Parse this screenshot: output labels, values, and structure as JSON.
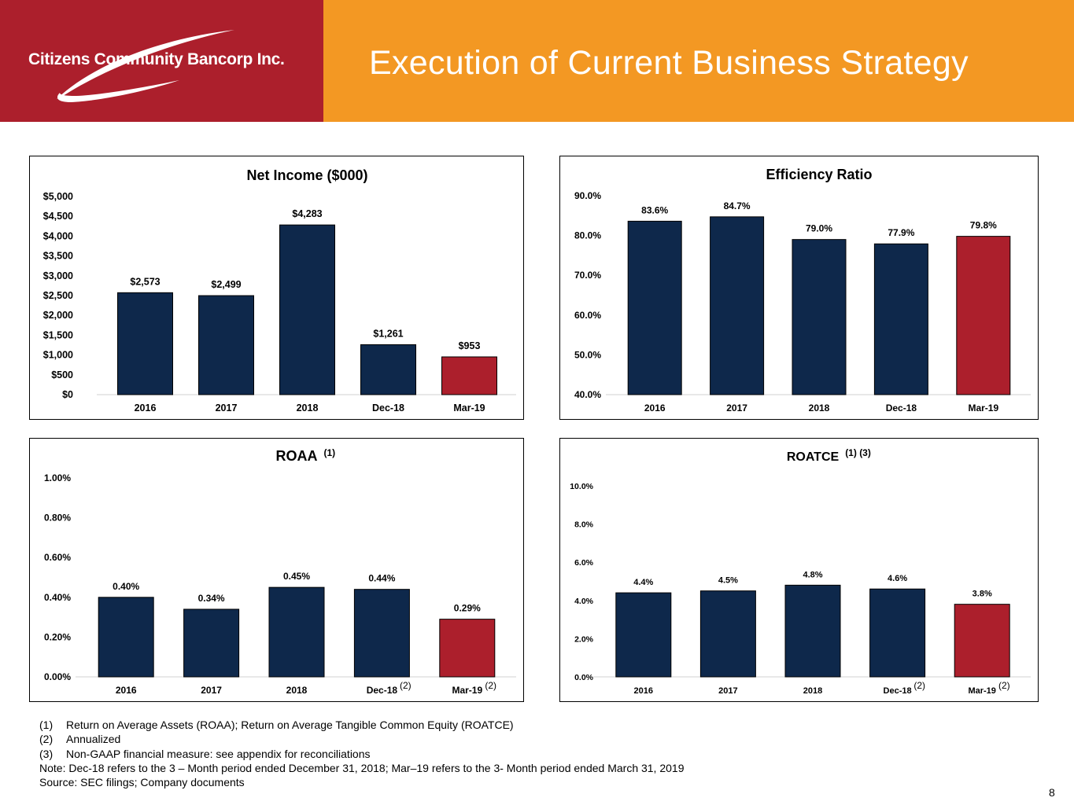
{
  "header": {
    "company_name": "Citizens Community Bancorp Inc.",
    "title": "Execution of Current Business Strategy"
  },
  "colors": {
    "header_red": "#ac1f2c",
    "header_orange": "#f39823",
    "bar_navy": "#0e284b",
    "bar_red": "#ac1f2c"
  },
  "chart_data": [
    {
      "id": "net-income",
      "type": "bar",
      "title": "Net Income ($000)",
      "title_superscript": "",
      "categories": [
        "2016",
        "2017",
        "2018",
        "Dec-18",
        "Mar-19"
      ],
      "category_notes": [
        "",
        "",
        "",
        "",
        ""
      ],
      "values": [
        2573,
        2499,
        4283,
        1261,
        953
      ],
      "value_labels": [
        "$2,573",
        "$2,499",
        "$4,283",
        "$1,261",
        "$953"
      ],
      "highlight_index": 4,
      "ylim": [
        0,
        5000
      ],
      "yticks": [
        0,
        500,
        1000,
        1500,
        2000,
        2500,
        3000,
        3500,
        4000,
        4500,
        5000
      ],
      "ytick_labels": [
        "$0",
        "$500",
        "$1,000",
        "$1,500",
        "$2,000",
        "$2,500",
        "$3,000",
        "$3,500",
        "$4,000",
        "$4,500",
        "$5,000"
      ]
    },
    {
      "id": "efficiency-ratio",
      "type": "bar",
      "title": "Efficiency Ratio",
      "title_superscript": "",
      "categories": [
        "2016",
        "2017",
        "2018",
        "Dec-18",
        "Mar-19"
      ],
      "category_notes": [
        "",
        "",
        "",
        "",
        ""
      ],
      "values": [
        83.6,
        84.7,
        79.0,
        77.9,
        79.8
      ],
      "value_labels": [
        "83.6%",
        "84.7%",
        "79.0%",
        "77.9%",
        "79.8%"
      ],
      "highlight_index": 4,
      "ylim": [
        40,
        90
      ],
      "yticks": [
        40,
        50,
        60,
        70,
        80,
        90
      ],
      "ytick_labels": [
        "40.0%",
        "50.0%",
        "60.0%",
        "70.0%",
        "80.0%",
        "90.0%"
      ]
    },
    {
      "id": "roaa",
      "type": "bar",
      "title": "ROAA",
      "title_superscript": "(1)",
      "categories": [
        "2016",
        "2017",
        "2018",
        "Dec-18",
        "Mar-19"
      ],
      "category_notes": [
        "",
        "",
        "",
        "(2)",
        "(2)"
      ],
      "values": [
        0.4,
        0.34,
        0.45,
        0.44,
        0.29
      ],
      "value_labels": [
        "0.40%",
        "0.34%",
        "0.45%",
        "0.44%",
        "0.29%"
      ],
      "highlight_index": 4,
      "ylim": [
        0,
        1.0
      ],
      "yticks": [
        0,
        0.2,
        0.4,
        0.6,
        0.8,
        1.0
      ],
      "ytick_labels": [
        "0.00%",
        "0.20%",
        "0.40%",
        "0.60%",
        "0.80%",
        "1.00%"
      ]
    },
    {
      "id": "roatce",
      "type": "bar",
      "title": "ROATCE",
      "title_superscript": "(1) (3)",
      "categories": [
        "2016",
        "2017",
        "2018",
        "Dec-18",
        "Mar-19"
      ],
      "category_notes": [
        "",
        "",
        "",
        "(2)",
        "(2)"
      ],
      "values": [
        4.4,
        4.5,
        4.8,
        4.6,
        3.8
      ],
      "value_labels": [
        "4.4%",
        "4.5%",
        "4.8%",
        "4.6%",
        "3.8%"
      ],
      "highlight_index": 4,
      "ylim": [
        0,
        10
      ],
      "yticks": [
        0,
        2,
        4,
        6,
        8,
        10
      ],
      "ytick_labels": [
        "0.0%",
        "2.0%",
        "4.0%",
        "6.0%",
        "8.0%",
        "10.0%"
      ]
    }
  ],
  "footnotes": [
    {
      "num": "(1)",
      "text": "Return on Average Assets (ROAA); Return on Average Tangible Common Equity (ROATCE)"
    },
    {
      "num": "(2)",
      "text": "Annualized"
    },
    {
      "num": "(3)",
      "text": "Non-GAAP financial measure: see appendix for reconciliations"
    }
  ],
  "note": "Note: Dec-18 refers to the 3 – Month period ended December 31, 2018; Mar–19 refers to the 3- Month period ended March 31, 2019",
  "source": "Source: SEC filings; Company documents",
  "page_number": "8"
}
